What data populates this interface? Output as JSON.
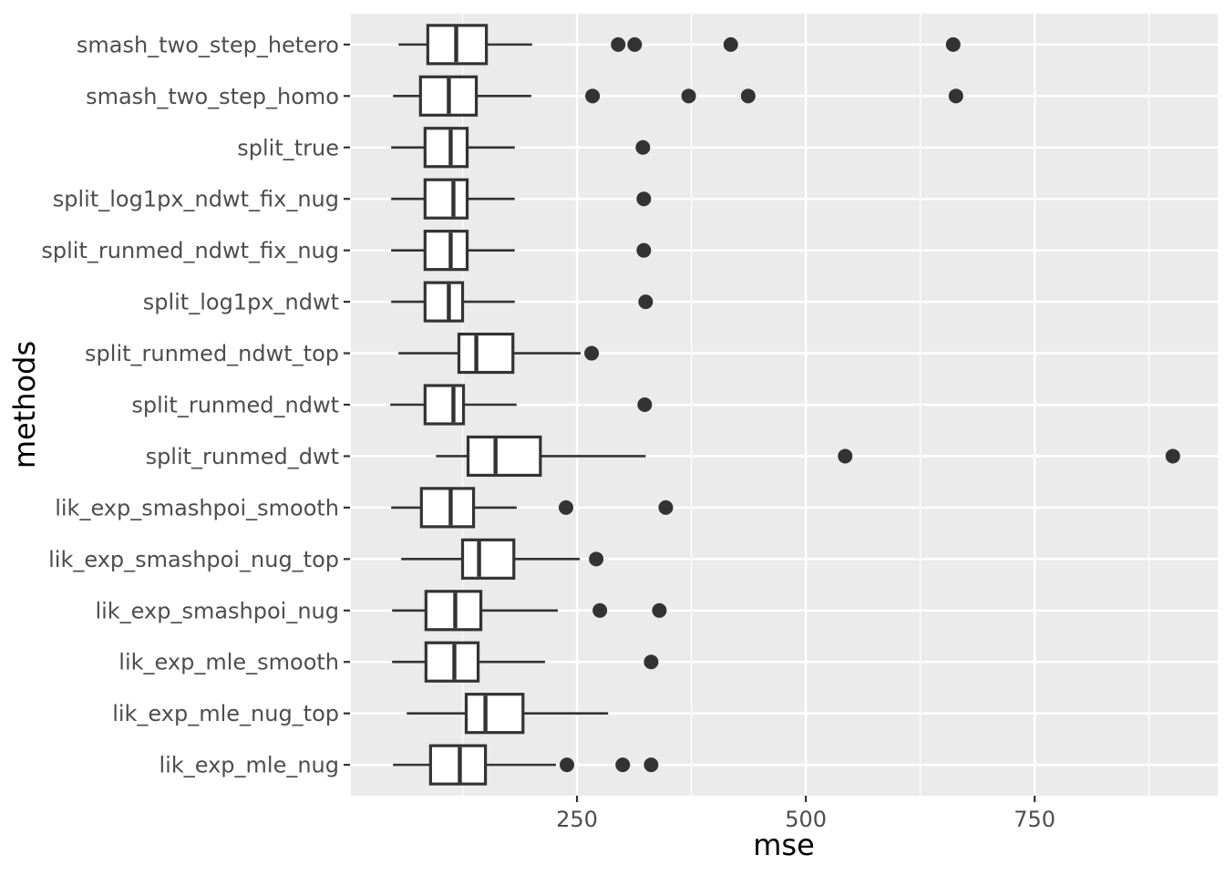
{
  "chart_data": {
    "type": "boxplot",
    "orientation": "horizontal",
    "title": "",
    "xlabel": "mse",
    "ylabel": "methods",
    "xlim": [
      3,
      950
    ],
    "x_ticks": [
      250,
      500,
      750
    ],
    "x_minor_gridlines": [
      125,
      375,
      625,
      875
    ],
    "grid": "on",
    "legend": "none",
    "categories_order": "top-to-bottom",
    "categories": [
      "smash_two_step_hetero",
      "smash_two_step_homo",
      "split_true",
      "split_log1px_ndwt_fix_nug",
      "split_runmed_ndwt_fix_nug",
      "split_log1px_ndwt",
      "split_runmed_ndwt_top",
      "split_runmed_ndwt",
      "split_runmed_dwt",
      "lik_exp_smashpoi_smooth",
      "lik_exp_smashpoi_nug_top",
      "lik_exp_smashpoi_nug",
      "lik_exp_mle_smooth",
      "lik_exp_mle_nug_top",
      "lik_exp_mle_nug"
    ],
    "series": [
      {
        "name": "smash_two_step_hetero",
        "whisker_low": 55,
        "q1": 87,
        "median": 118,
        "q3": 151,
        "whisker_high": 201,
        "outliers": [
          295,
          313,
          418,
          661
        ]
      },
      {
        "name": "smash_two_step_homo",
        "whisker_low": 49,
        "q1": 79,
        "median": 110,
        "q3": 140,
        "whisker_high": 200,
        "outliers": [
          267,
          372,
          437,
          664
        ]
      },
      {
        "name": "split_true",
        "whisker_low": 47,
        "q1": 84,
        "median": 112,
        "q3": 130,
        "whisker_high": 182,
        "outliers": [
          322
        ]
      },
      {
        "name": "split_log1px_ndwt_fix_nug",
        "whisker_low": 47,
        "q1": 84,
        "median": 115,
        "q3": 130,
        "whisker_high": 182,
        "outliers": [
          323
        ]
      },
      {
        "name": "split_runmed_ndwt_fix_nug",
        "whisker_low": 47,
        "q1": 84,
        "median": 112,
        "q3": 130,
        "whisker_high": 182,
        "outliers": [
          323
        ]
      },
      {
        "name": "split_log1px_ndwt",
        "whisker_low": 47,
        "q1": 84,
        "median": 110,
        "q3": 125,
        "whisker_high": 182,
        "outliers": [
          325
        ]
      },
      {
        "name": "split_runmed_ndwt_top",
        "whisker_low": 55,
        "q1": 121,
        "median": 140,
        "q3": 180,
        "whisker_high": 254,
        "outliers": [
          266
        ]
      },
      {
        "name": "split_runmed_ndwt",
        "whisker_low": 46,
        "q1": 84,
        "median": 115,
        "q3": 126,
        "whisker_high": 184,
        "outliers": [
          324
        ]
      },
      {
        "name": "split_runmed_dwt",
        "whisker_low": 96,
        "q1": 131,
        "median": 161,
        "q3": 210,
        "whisker_high": 325,
        "outliers": [
          543,
          901
        ]
      },
      {
        "name": "lik_exp_smashpoi_smooth",
        "whisker_low": 47,
        "q1": 80,
        "median": 112,
        "q3": 137,
        "whisker_high": 184,
        "outliers": [
          238,
          347
        ]
      },
      {
        "name": "lik_exp_smashpoi_nug_top",
        "whisker_low": 58,
        "q1": 125,
        "median": 143,
        "q3": 181,
        "whisker_high": 253,
        "outliers": [
          271
        ]
      },
      {
        "name": "lik_exp_smashpoi_nug",
        "whisker_low": 48,
        "q1": 85,
        "median": 117,
        "q3": 145,
        "whisker_high": 229,
        "outliers": [
          275,
          340
        ]
      },
      {
        "name": "lik_exp_mle_smooth",
        "whisker_low": 48,
        "q1": 85,
        "median": 116,
        "q3": 142,
        "whisker_high": 215,
        "outliers": [
          331
        ]
      },
      {
        "name": "lik_exp_mle_nug_top",
        "whisker_low": 64,
        "q1": 129,
        "median": 150,
        "q3": 191,
        "whisker_high": 284,
        "outliers": []
      },
      {
        "name": "lik_exp_mle_nug",
        "whisker_low": 49,
        "q1": 90,
        "median": 122,
        "q3": 150,
        "whisker_high": 227,
        "outliers": [
          239,
          300,
          331
        ]
      }
    ]
  },
  "style": {
    "figure_bg": "#ffffff",
    "panel_bg": "#EBEBEB",
    "grid": "#FFFFFF",
    "box_stroke": "#333333",
    "box_fill": "#ffffff",
    "outlier": "#333333",
    "tick": "#333333",
    "axis_text": "#4D4D4D",
    "axis_title": "#000000"
  }
}
